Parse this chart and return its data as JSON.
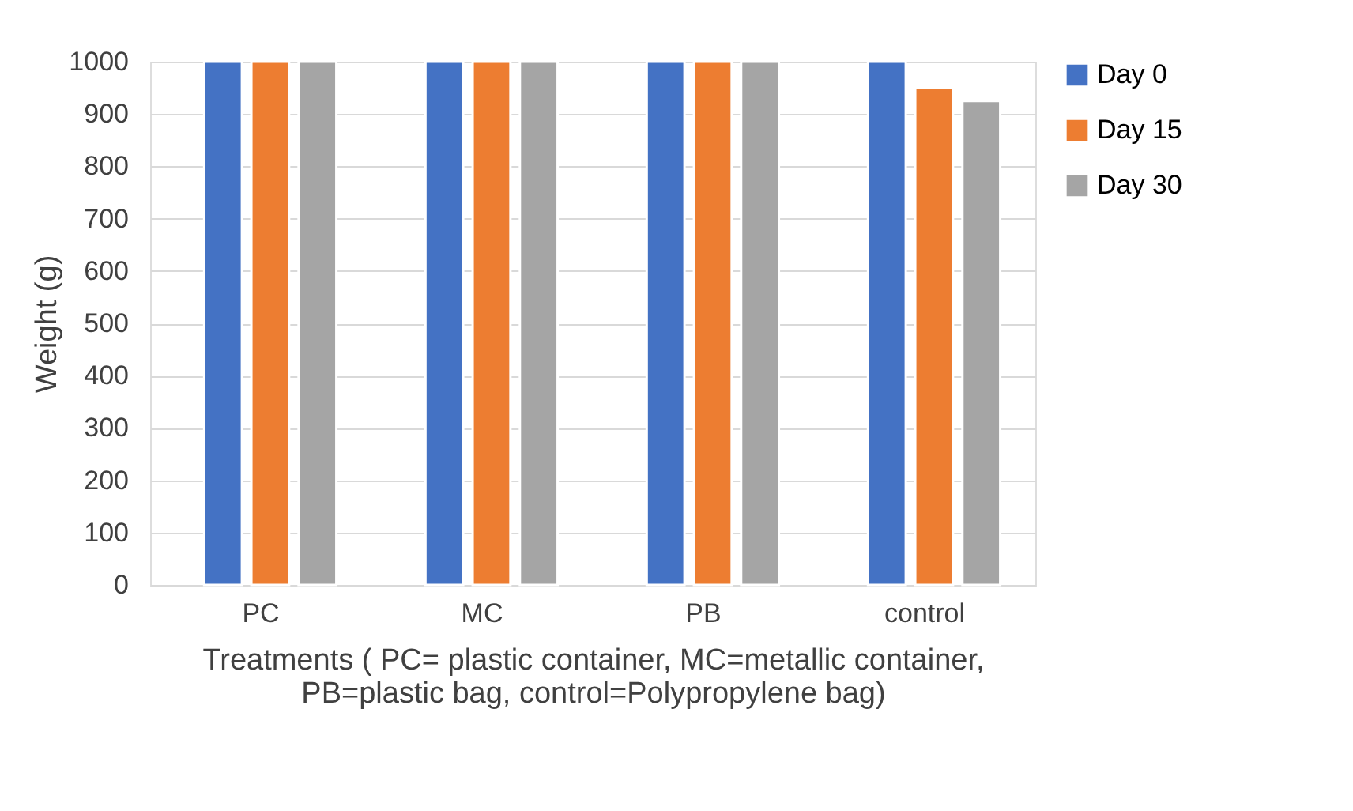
{
  "chart_data": {
    "type": "bar",
    "ylabel": "Weight (g)",
    "xlabel": "Treatments ( PC= plastic container, MC=metallic container,\nPB=plastic bag, control=Polypropylene bag)",
    "categories": [
      "PC",
      "MC",
      "PB",
      "control"
    ],
    "series": [
      {
        "name": "Day 0",
        "color": "#4472c4",
        "values": [
          1000,
          1000,
          1000,
          1000
        ]
      },
      {
        "name": "Day 15",
        "color": "#ed7d31",
        "values": [
          1000,
          1000,
          1000,
          950
        ]
      },
      {
        "name": "Day 30",
        "color": "#a5a5a5",
        "values": [
          1000,
          1000,
          1000,
          925
        ]
      }
    ],
    "ylim": [
      0,
      1000
    ],
    "yticks": [
      0,
      100,
      200,
      300,
      400,
      500,
      600,
      700,
      800,
      900,
      1000
    ],
    "grid": "y",
    "legend": "right"
  }
}
